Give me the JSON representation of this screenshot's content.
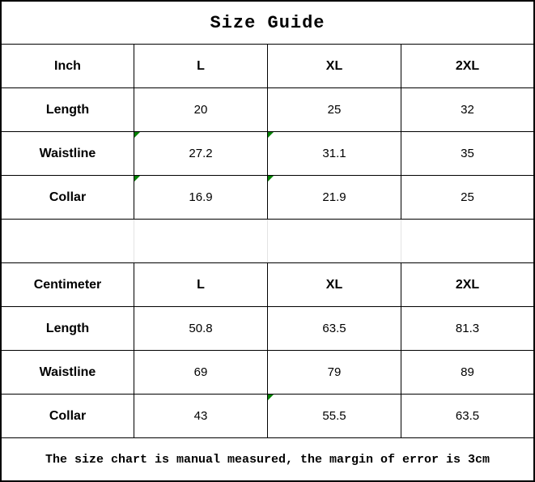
{
  "title": "Size Guide",
  "footer_note": "The size chart is manual measured, the margin of error is 3cm",
  "colors": {
    "border": "#000000",
    "empty_row_grid": "#e3e3e3",
    "flag_green": "#008000",
    "background": "#ffffff",
    "text": "#000000"
  },
  "inch_table": {
    "headers": [
      "Inch",
      "L",
      "XL",
      "2XL"
    ],
    "rows": [
      {
        "label": "Length",
        "values": [
          "20",
          "25",
          "32"
        ]
      },
      {
        "label": "Waistline",
        "values": [
          "27.2",
          "31.1",
          "35"
        ]
      },
      {
        "label": "Collar",
        "values": [
          "16.9",
          "21.9",
          "25"
        ]
      }
    ]
  },
  "cm_table": {
    "headers": [
      "Centimeter",
      "L",
      "XL",
      "2XL"
    ],
    "rows": [
      {
        "label": "Length",
        "values": [
          "50.8",
          "63.5",
          "81.3"
        ]
      },
      {
        "label": "Waistline",
        "values": [
          "69",
          "79",
          "89"
        ]
      },
      {
        "label": "Collar",
        "values": [
          "43",
          "55.5",
          "63.5"
        ]
      }
    ]
  },
  "flagged_cells": [
    "inch-waistline-L",
    "inch-waistline-XL",
    "inch-collar-L",
    "inch-collar-XL",
    "cm-collar-XL"
  ]
}
